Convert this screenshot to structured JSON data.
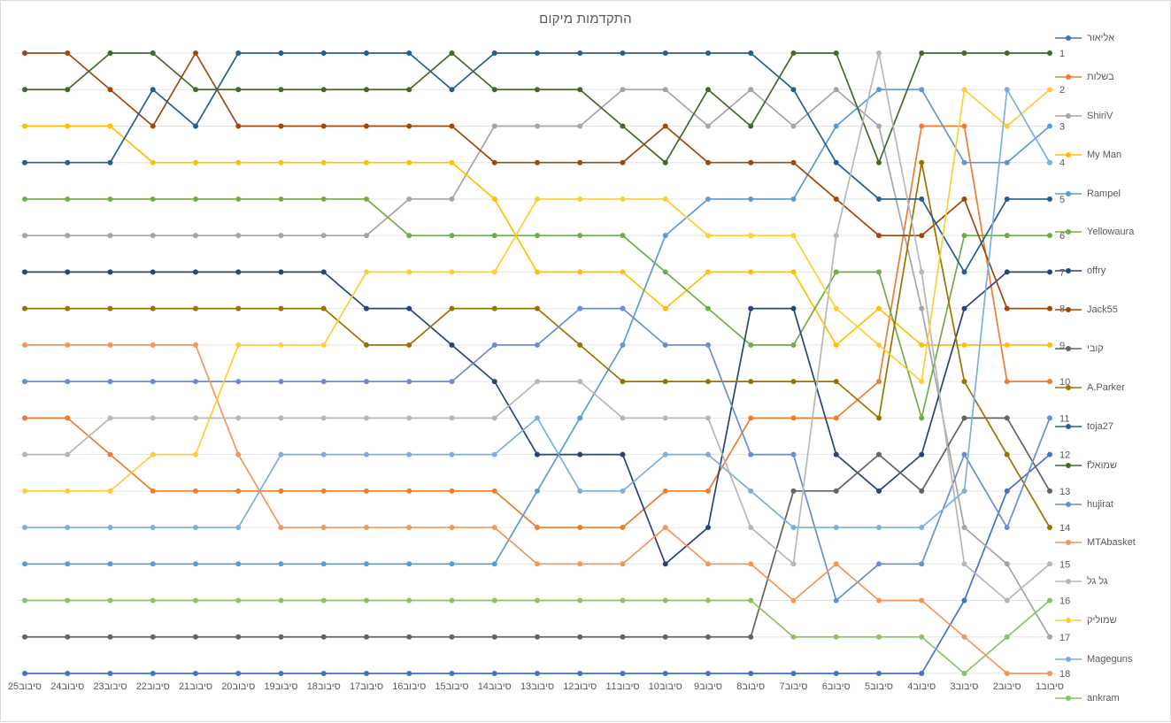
{
  "page": {
    "title": "התקדמות מיקום"
  },
  "chart_data": {
    "type": "line",
    "title": "התקדמות מיקום",
    "legend_position": "right",
    "grid": "horizontal",
    "y_axis": {
      "min": 1,
      "max": 18,
      "label_side": "right",
      "lower_is_better": true
    },
    "y_tick_labels": [
      "1",
      "2",
      "3",
      "4",
      "5",
      "6",
      "7",
      "8",
      "9",
      "10",
      "11",
      "12",
      "13",
      "14",
      "15",
      "16",
      "17",
      "18"
    ],
    "x_order": "left-to-right",
    "x_categories": [
      "סיבוב25",
      "סיבוב24",
      "סיבוב23",
      "סיבוב22",
      "סיבוב21",
      "סיבוב20",
      "סיבוב19",
      "סיבוב18",
      "סיבוב17",
      "סיבוב16",
      "סיבוב15",
      "סיבוב14",
      "סיבוב13",
      "סיבוב12",
      "סיבוב11",
      "סיבוב10",
      "סיבוב9",
      "סיבוב8",
      "סיבוב7",
      "סיבוב6",
      "סיבוב5",
      "סיבוב4",
      "סיבוב3",
      "סיבוב2",
      "סיבוב1"
    ],
    "series": [
      {
        "name": "אליאור",
        "color": "#4472C4",
        "values": [
          18,
          18,
          18,
          18,
          18,
          18,
          18,
          18,
          18,
          18,
          18,
          18,
          18,
          18,
          18,
          18,
          18,
          18,
          18,
          18,
          18,
          18,
          16,
          13,
          12
        ]
      },
      {
        "name": "בשלות",
        "color": "#ED7D31",
        "values": [
          11,
          11,
          12,
          13,
          13,
          13,
          13,
          13,
          13,
          13,
          13,
          13,
          14,
          14,
          14,
          13,
          13,
          11,
          11,
          11,
          10,
          3,
          3,
          10,
          10
        ]
      },
      {
        "name": "ShiriV",
        "color": "#A5A5A5",
        "values": [
          6,
          6,
          6,
          6,
          6,
          6,
          6,
          6,
          6,
          5,
          5,
          3,
          3,
          3,
          2,
          2,
          3,
          2,
          3,
          2,
          3,
          8,
          14,
          15,
          17
        ]
      },
      {
        "name": "My Man",
        "color": "#FFC000",
        "values": [
          3,
          3,
          3,
          4,
          4,
          4,
          4,
          4,
          4,
          4,
          4,
          5,
          7,
          7,
          7,
          8,
          7,
          7,
          7,
          9,
          8,
          9,
          9,
          9,
          9
        ]
      },
      {
        "name": "Rampel",
        "color": "#5B9BD5",
        "values": [
          15,
          15,
          15,
          15,
          15,
          15,
          15,
          15,
          15,
          15,
          15,
          15,
          13,
          11,
          9,
          6,
          5,
          5,
          5,
          3,
          2,
          2,
          4,
          4,
          3
        ]
      },
      {
        "name": "Yellowaura",
        "color": "#70AD47",
        "values": [
          5,
          5,
          5,
          5,
          5,
          5,
          5,
          5,
          5,
          6,
          6,
          6,
          6,
          6,
          6,
          7,
          8,
          9,
          9,
          7,
          7,
          11,
          6,
          6,
          6
        ]
      },
      {
        "name": "offry",
        "color": "#264478",
        "values": [
          7,
          7,
          7,
          7,
          7,
          7,
          7,
          7,
          8,
          8,
          9,
          10,
          12,
          12,
          12,
          15,
          14,
          8,
          8,
          12,
          13,
          12,
          8,
          7,
          7
        ]
      },
      {
        "name": "Jack55",
        "color": "#9E480E",
        "values": [
          1,
          1,
          2,
          3,
          1,
          3,
          3,
          3,
          3,
          3,
          3,
          4,
          4,
          4,
          4,
          3,
          4,
          4,
          4,
          5,
          6,
          6,
          5,
          8,
          8
        ]
      },
      {
        "name": "קובי",
        "color": "#636363",
        "values": [
          17,
          17,
          17,
          17,
          17,
          17,
          17,
          17,
          17,
          17,
          17,
          17,
          17,
          17,
          17,
          17,
          17,
          17,
          13,
          13,
          12,
          13,
          11,
          11,
          13
        ]
      },
      {
        "name": "A.Parker",
        "color": "#997300",
        "values": [
          8,
          8,
          8,
          8,
          8,
          8,
          8,
          8,
          9,
          9,
          8,
          8,
          8,
          9,
          10,
          10,
          10,
          10,
          10,
          10,
          11,
          4,
          10,
          12,
          14
        ]
      },
      {
        "name": "toja27",
        "color": "#255E91",
        "values": [
          4,
          4,
          4,
          2,
          3,
          1,
          1,
          1,
          1,
          1,
          2,
          1,
          1,
          1,
          1,
          1,
          1,
          1,
          2,
          4,
          5,
          5,
          7,
          5,
          5
        ]
      },
      {
        "name": "שמואלf",
        "color": "#43682B",
        "values": [
          2,
          2,
          1,
          1,
          2,
          2,
          2,
          2,
          2,
          2,
          1,
          2,
          2,
          2,
          3,
          4,
          2,
          3,
          1,
          1,
          4,
          1,
          1,
          1,
          1
        ]
      },
      {
        "name": "hujirat",
        "color": "#698ED0",
        "values": [
          10,
          10,
          10,
          10,
          10,
          10,
          10,
          10,
          10,
          10,
          10,
          9,
          9,
          8,
          8,
          9,
          9,
          12,
          12,
          16,
          15,
          15,
          12,
          14,
          11
        ]
      },
      {
        "name": "MTAbasket",
        "color": "#F1975A",
        "values": [
          9,
          9,
          9,
          9,
          9,
          12,
          14,
          14,
          14,
          14,
          14,
          14,
          15,
          15,
          15,
          14,
          15,
          15,
          16,
          15,
          16,
          16,
          17,
          18,
          18
        ]
      },
      {
        "name": "גל גל",
        "color": "#B7B7B7",
        "values": [
          12,
          12,
          11,
          11,
          11,
          11,
          11,
          11,
          11,
          11,
          11,
          11,
          10,
          10,
          11,
          11,
          11,
          14,
          15,
          6,
          1,
          7,
          15,
          16,
          15
        ]
      },
      {
        "name": "שמוליק",
        "color": "#FFCD33",
        "values": [
          13,
          13,
          13,
          12,
          12,
          9,
          9,
          9,
          7,
          7,
          7,
          7,
          5,
          5,
          5,
          5,
          6,
          6,
          6,
          8,
          9,
          10,
          2,
          3,
          2
        ]
      },
      {
        "name": "Mageguns",
        "color": "#7CAFDD",
        "values": [
          14,
          14,
          14,
          14,
          14,
          14,
          12,
          12,
          12,
          12,
          12,
          12,
          11,
          13,
          13,
          12,
          12,
          13,
          14,
          14,
          14,
          14,
          13,
          2,
          4
        ]
      },
      {
        "name": "ankram",
        "color": "#8CC168",
        "values": [
          16,
          16,
          16,
          16,
          16,
          16,
          16,
          16,
          16,
          16,
          16,
          16,
          16,
          16,
          16,
          16,
          16,
          16,
          17,
          17,
          17,
          17,
          18,
          17,
          16
        ]
      }
    ]
  }
}
